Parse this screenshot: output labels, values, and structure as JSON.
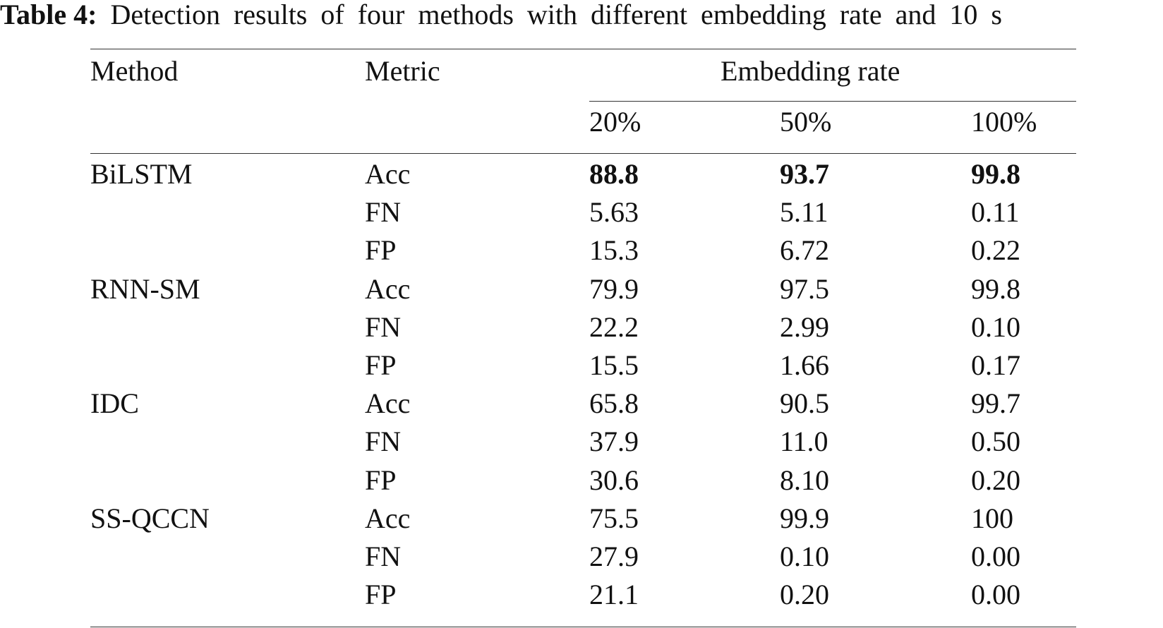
{
  "caption": {
    "label": "Table 4:",
    "text": "Detection results of four methods with different embedding rate and 10 s"
  },
  "table": {
    "headers": {
      "method": "Method",
      "metric": "Metric",
      "group": "Embedding rate",
      "rates": [
        "20%",
        "50%",
        "100%"
      ]
    },
    "rows": [
      {
        "method": "BiLSTM",
        "metric": "Acc",
        "values": [
          "88.8",
          "93.7",
          "99.8"
        ],
        "bold": true
      },
      {
        "method": "",
        "metric": "FN",
        "values": [
          "5.63",
          "5.11",
          "0.11"
        ],
        "bold": false
      },
      {
        "method": "",
        "metric": "FP",
        "values": [
          "15.3",
          "6.72",
          "0.22"
        ],
        "bold": false
      },
      {
        "method": "RNN-SM",
        "metric": "Acc",
        "values": [
          "79.9",
          "97.5",
          "99.8"
        ],
        "bold": false
      },
      {
        "method": "",
        "metric": "FN",
        "values": [
          "22.2",
          "2.99",
          "0.10"
        ],
        "bold": false
      },
      {
        "method": "",
        "metric": "FP",
        "values": [
          "15.5",
          "1.66",
          "0.17"
        ],
        "bold": false
      },
      {
        "method": "IDC",
        "metric": "Acc",
        "values": [
          "65.8",
          "90.5",
          "99.7"
        ],
        "bold": false
      },
      {
        "method": "",
        "metric": "FN",
        "values": [
          "37.9",
          "11.0",
          "0.50"
        ],
        "bold": false
      },
      {
        "method": "",
        "metric": "FP",
        "values": [
          "30.6",
          "8.10",
          "0.20"
        ],
        "bold": false
      },
      {
        "method": "SS-QCCN",
        "metric": "Acc",
        "values": [
          "75.5",
          "99.9",
          "100"
        ],
        "bold": false
      },
      {
        "method": "",
        "metric": "FN",
        "values": [
          "27.9",
          "0.10",
          "0.00"
        ],
        "bold": false
      },
      {
        "method": "",
        "metric": "FP",
        "values": [
          "21.1",
          "0.20",
          "0.00"
        ],
        "bold": false
      }
    ]
  }
}
